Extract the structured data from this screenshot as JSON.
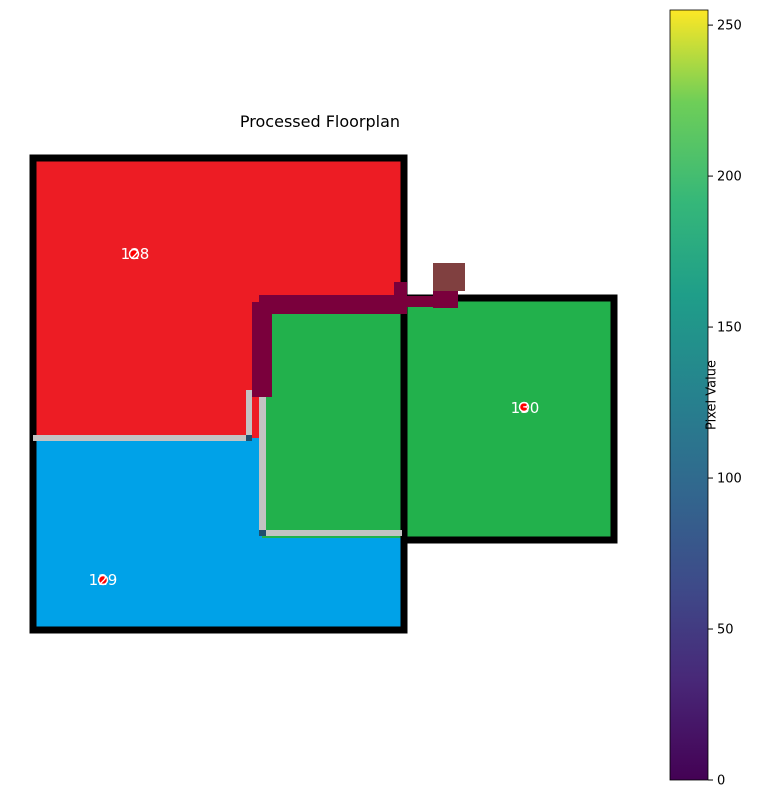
{
  "figure": {
    "title": "Processed Floorplan"
  },
  "rooms": [
    {
      "id": "room-128",
      "label": "128",
      "color": "#ed1c24"
    },
    {
      "id": "room-129",
      "label": "129",
      "color": "#00a2e8"
    },
    {
      "id": "room-130",
      "label": "130",
      "color": "#22b14c"
    }
  ],
  "colors": {
    "outer_wall": "#000000",
    "interior_wall": "#c3c3c3",
    "door": "#7a003c",
    "stair_block": "#804040",
    "centroid_marker": "#ff0000"
  },
  "colorbar": {
    "label": "Pixel Value",
    "colormap": "viridis",
    "range": [
      0,
      255
    ],
    "ticks": [
      "0",
      "50",
      "100",
      "150",
      "200",
      "250"
    ]
  }
}
